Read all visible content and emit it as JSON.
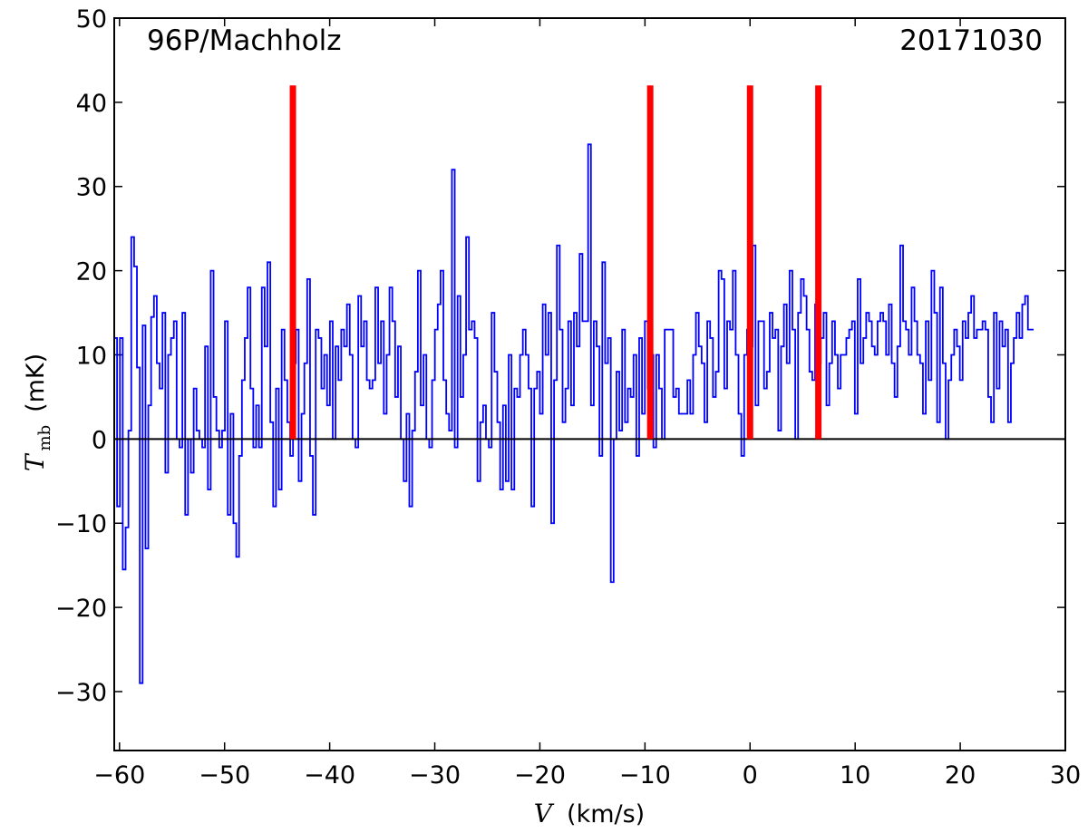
{
  "chart_data": {
    "type": "line",
    "step": true,
    "annotations": {
      "object": "96P/Machholz",
      "date": "20171030"
    },
    "xlabel": {
      "symbol": "V",
      "unit": "(km/s)"
    },
    "ylabel": {
      "symbol": "T",
      "subscript": "mb",
      "unit": "(mK)"
    },
    "xlim": [
      -60.5,
      30
    ],
    "ylim": [
      -37,
      50
    ],
    "xticks": [
      -60,
      -50,
      -40,
      -30,
      -20,
      -10,
      0,
      10,
      20,
      30
    ],
    "xtick_labels": [
      "−60",
      "−50",
      "−40",
      "−30",
      "−20",
      "−10",
      "0",
      "10",
      "20",
      "30"
    ],
    "yticks": [
      -30,
      -20,
      -10,
      0,
      10,
      20,
      30,
      40,
      50
    ],
    "ytick_labels": [
      "−30",
      "−20",
      "−10",
      "0",
      "10",
      "20",
      "30",
      "40",
      "50"
    ],
    "grid": false,
    "zero_line": 0,
    "colors": {
      "spectrum": "#0000ff",
      "markers": "#ff0000",
      "zero_line": "#000000"
    },
    "series": [
      {
        "x_start": -60.5,
        "bin_width": 0.27,
        "values": [
          12,
          -8,
          12,
          -15.5,
          -10.5,
          1,
          24,
          20.5,
          8.5,
          -29,
          13.5,
          -13,
          4,
          14.5,
          17,
          9,
          6,
          15,
          -4,
          10,
          12,
          14,
          0,
          -1,
          15,
          -9,
          0,
          -4,
          6,
          1,
          0,
          -1,
          11,
          -6,
          20,
          5,
          1,
          -1,
          1,
          14,
          -9,
          3,
          -10,
          -14,
          -2,
          7,
          12,
          18,
          6,
          -1,
          4,
          -1,
          18,
          11,
          21,
          2,
          -8,
          6,
          -6,
          13,
          7,
          2,
          -2,
          9,
          13,
          -5,
          3,
          9,
          19,
          -2,
          -9,
          13,
          12,
          6,
          10,
          4,
          14,
          0,
          11,
          7,
          13,
          11,
          16,
          10,
          0,
          -1,
          17,
          11,
          14,
          7,
          6,
          7,
          18,
          9,
          14,
          3,
          10,
          18,
          14,
          5,
          11,
          0,
          -5,
          3,
          -8,
          1,
          8,
          20,
          4,
          10,
          0,
          -1,
          7,
          13,
          16,
          20,
          7,
          3,
          1,
          32,
          -1,
          17,
          5,
          10,
          24,
          13,
          14,
          12,
          -5,
          2,
          4,
          0,
          -1,
          15,
          8,
          2,
          -6,
          4,
          -5,
          10,
          -6,
          6,
          5,
          10,
          13,
          10,
          6,
          -8,
          6,
          8,
          3,
          16,
          10,
          15,
          -10,
          7,
          23,
          13,
          2,
          6,
          14,
          4,
          15,
          11,
          22,
          14,
          14,
          35,
          4,
          14,
          11,
          -2,
          21,
          9,
          12,
          -17,
          0,
          8,
          1,
          13,
          2,
          6,
          5,
          10,
          -2,
          12,
          3,
          14,
          6,
          10,
          -1,
          10,
          6,
          0,
          13,
          13,
          13,
          5,
          6,
          3,
          3,
          3,
          7,
          3,
          10,
          15,
          11,
          9,
          2,
          14,
          12,
          5,
          8,
          20,
          19,
          6,
          14,
          13,
          20,
          10,
          3,
          -2,
          10,
          13,
          11,
          23,
          4,
          14,
          14,
          6,
          8,
          15,
          12,
          13,
          1,
          11,
          16,
          9,
          20,
          13,
          0,
          15,
          19,
          17,
          13,
          8,
          7,
          16,
          9,
          12,
          15,
          4,
          9,
          14,
          10,
          6,
          10,
          10,
          12,
          13,
          14,
          3,
          19,
          9,
          12,
          15,
          14,
          11,
          10,
          14,
          15,
          14,
          10,
          16,
          9,
          5,
          11,
          23,
          14,
          13,
          10,
          18,
          14,
          10,
          9,
          3,
          14,
          7,
          20,
          15,
          2,
          18,
          9,
          0,
          7,
          10,
          13,
          11,
          7,
          14,
          12,
          15,
          17,
          12,
          13,
          13,
          14,
          13,
          5,
          2,
          15,
          6,
          14,
          11,
          13,
          2,
          9,
          12,
          15,
          12,
          16,
          17,
          13,
          13
        ]
      }
    ],
    "markers": [
      {
        "x": -43.5,
        "y_from": 0,
        "y_to": 42
      },
      {
        "x": -9.5,
        "y_from": 0,
        "y_to": 42
      },
      {
        "x": 0,
        "y_from": 0,
        "y_to": 42
      },
      {
        "x": 6.5,
        "y_from": 0,
        "y_to": 42
      }
    ]
  }
}
